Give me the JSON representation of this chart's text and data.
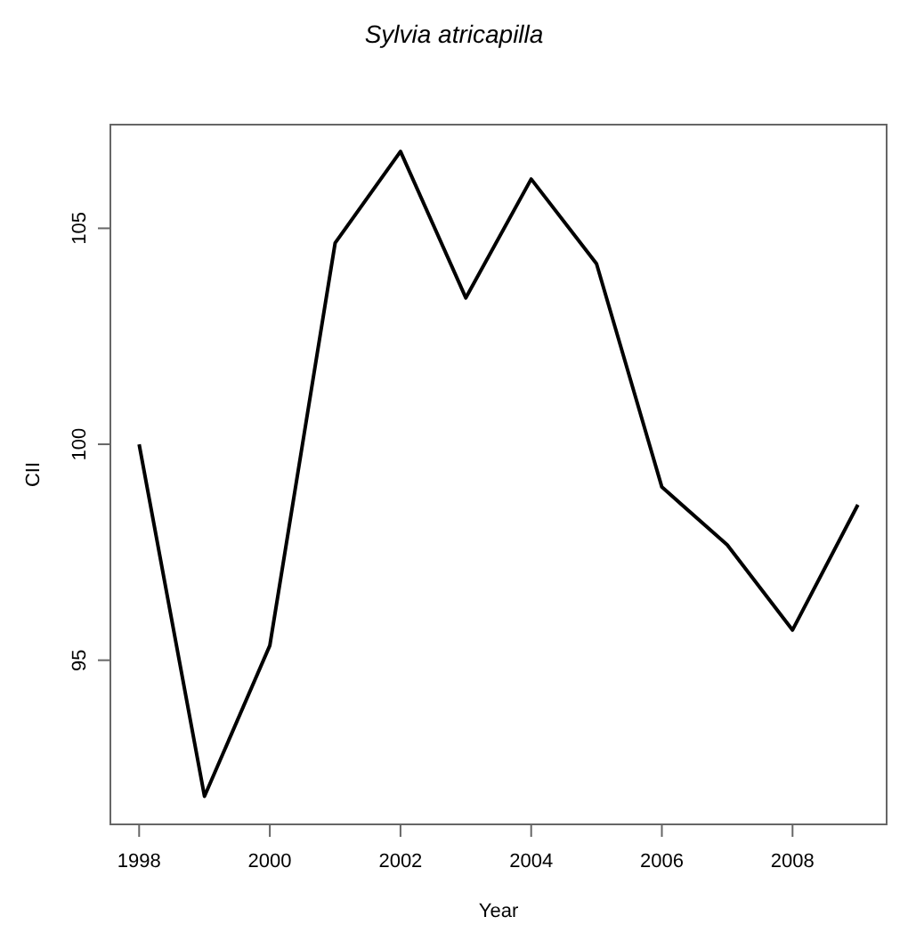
{
  "chart_data": {
    "type": "line",
    "title": "Sylvia atricapilla",
    "xlabel": "Year",
    "ylabel": "CII",
    "x": [
      1998,
      1999,
      2000,
      2001,
      2002,
      2003,
      2004,
      2005,
      2006,
      2007,
      2008,
      2009
    ],
    "series": [
      {
        "color": "#000000",
        "values": [
          100.0,
          91.85,
          95.34,
          104.66,
          106.78,
          103.39,
          106.14,
          104.18,
          99.01,
          97.67,
          95.7,
          98.6
        ]
      }
    ],
    "xlim": [
      1997.56,
      2009.44
    ],
    "ylim": [
      91.2,
      107.4
    ],
    "xticks": [
      1998,
      2000,
      2002,
      2004,
      2006,
      2008
    ],
    "yticks": [
      95,
      100,
      105
    ],
    "grid": false
  }
}
